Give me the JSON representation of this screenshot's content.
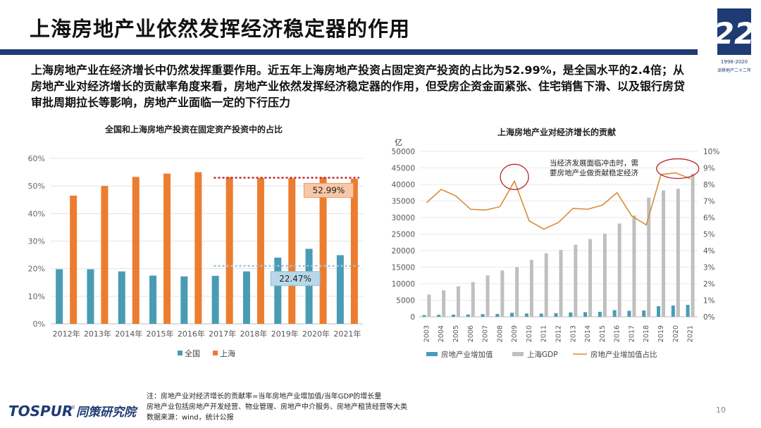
{
  "title": "上海房地产业依然发挥经济稳定器的作用",
  "intro": "上海房地产业在经济增长中仍然发挥重要作用。近五年上海房地产投资占固定资产投资的占比为52.99%，是全国水平的2.4倍；从房地产业对经济增长的贡献率角度来看，房地产业依然发挥经济稳定器的作用，但受房企资金面紧张、住宅销售下滑、以及银行房贷审批周期拉长等影响，房地产业面临一定的下行压力",
  "logo": {
    "years": "1998-2020",
    "caption": "深耕地产二十二年",
    "number": "22"
  },
  "colors": {
    "nation": "#4a9bb5",
    "shanghai": "#ec7d30",
    "gdp": "#bfbfbf",
    "ratio_line": "#d98c3a",
    "accent": "#1f3b73"
  },
  "chart_data": [
    {
      "type": "bar",
      "title": "全国和上海房地产投资在固定资产投资中的占比",
      "categories": [
        "2012年",
        "2013年",
        "2014年",
        "2015年",
        "2016年",
        "2017年",
        "2018年",
        "2019年",
        "2020年",
        "2021年"
      ],
      "series": [
        {
          "name": "全国",
          "values": [
            19.8,
            19.8,
            19.0,
            17.5,
            17.2,
            17.4,
            19.0,
            24.0,
            27.2,
            24.9
          ]
        },
        {
          "name": "上海",
          "values": [
            46.5,
            50.0,
            53.3,
            54.5,
            55.0,
            53.2,
            52.9,
            52.8,
            53.1,
            52.6
          ]
        }
      ],
      "ylim": [
        0,
        60
      ],
      "yticks": [
        "0%",
        "10%",
        "20%",
        "30%",
        "40%",
        "50%",
        "60%"
      ],
      "annotations": [
        {
          "text": "52.99%",
          "series": "上海",
          "level": 52.99
        },
        {
          "text": "22.47%",
          "series": "全国",
          "level": 21.0
        }
      ],
      "legend": "bottom"
    },
    {
      "type": "bar",
      "title": "上海房地产业对经济增长的贡献",
      "y_unit": "亿",
      "categories": [
        "2003",
        "2004",
        "2005",
        "2006",
        "2007",
        "2008",
        "2009",
        "2010",
        "2011",
        "2012",
        "2013",
        "2014",
        "2015",
        "2016",
        "2017",
        "2018",
        "2019",
        "2020",
        "2021"
      ],
      "series": [
        {
          "name": "房地产业增加值",
          "axis": "left",
          "values": [
            500,
            600,
            650,
            700,
            800,
            850,
            1200,
            1000,
            950,
            1100,
            1300,
            1400,
            1500,
            2000,
            1800,
            1900,
            3200,
            3400,
            3600
          ]
        },
        {
          "name": "上海GDP",
          "axis": "left",
          "values": [
            6700,
            8000,
            9200,
            10500,
            12500,
            14000,
            15000,
            17200,
            19200,
            20200,
            21800,
            23500,
            25100,
            28200,
            30600,
            36000,
            38200,
            38700,
            43200
          ]
        },
        {
          "name": "房地产业增加值占比",
          "axis": "right",
          "type": "line",
          "values": [
            6.9,
            7.7,
            7.3,
            6.5,
            6.45,
            6.65,
            8.2,
            5.8,
            5.3,
            5.7,
            6.55,
            6.5,
            6.75,
            7.5,
            6.1,
            5.55,
            8.6,
            8.7,
            8.35
          ]
        }
      ],
      "ylim": [
        0,
        50000
      ],
      "yticks": [
        "0",
        "5000",
        "10000",
        "15000",
        "20000",
        "25000",
        "30000",
        "35000",
        "40000",
        "45000",
        "50000"
      ],
      "y2lim": [
        0,
        10
      ],
      "y2ticks": [
        "0%",
        "1%",
        "2%",
        "3%",
        "4%",
        "5%",
        "6%",
        "7%",
        "8%",
        "9%",
        "10%"
      ],
      "annotation": "当经济发展面临冲击时，需要房地产业做贡献稳定经济",
      "annotation_lines": [
        "当经济发展面临冲击时，需",
        "要房地产业做贡献稳定经济"
      ],
      "highlight_categories": [
        "2009",
        "2020"
      ],
      "legend": "bottom"
    }
  ],
  "footnote": [
    "注：房地产业对经济增长的贡献率=当年房地产业增加值/当年GDP的增长量",
    "房地产业包括房地产开发经营、物业管理、房地产中介服务、房地产租赁经营等大类",
    "数据来源：wind，统计公报"
  ],
  "brand": {
    "name": "TOSPUR",
    "cn": "同策研究院",
    "mark": "®"
  },
  "page_number": "10"
}
